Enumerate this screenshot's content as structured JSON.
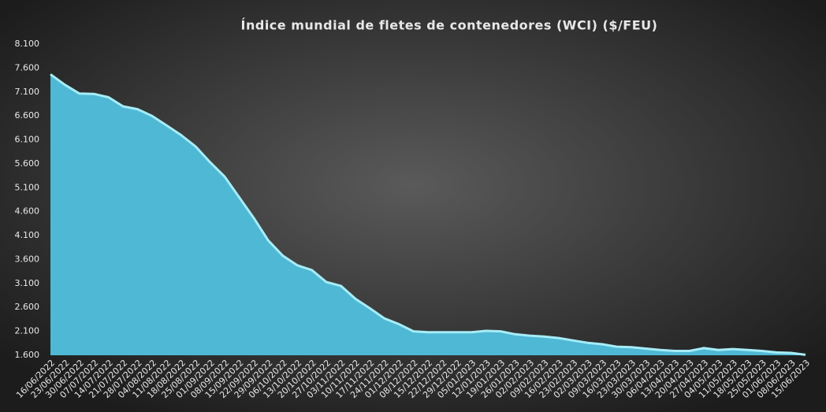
{
  "chart_data": {
    "type": "area",
    "title": "Índice mundial  de fletes de contenedores (WCI) ($/FEU)",
    "categories": [
      "16/06/2022",
      "23/06/2022",
      "30/06/2022",
      "07/07/2022",
      "14/07/2022",
      "21/07/2022",
      "28/07/2022",
      "04/08/2022",
      "11/08/2022",
      "18/08/2022",
      "25/08/2022",
      "01/09/2022",
      "08/09/2022",
      "15/09/2022",
      "22/09/2022",
      "29/09/2022",
      "06/10/2022",
      "13/10/2022",
      "20/10/2022",
      "27/10/2022",
      "03/11/2022",
      "10/11/2022",
      "17/11/2022",
      "24/11/2022",
      "01/12/2022",
      "08/12/2022",
      "15/12/2022",
      "22/12/2022",
      "29/12/2022",
      "05/01/2023",
      "12/01/2023",
      "19/01/2023",
      "26/01/2023",
      "02/02/2023",
      "09/02/2023",
      "16/02/2023",
      "23/02/2023",
      "02/03/2023",
      "09/03/2023",
      "16/03/2023",
      "23/03/2023",
      "30/03/2023",
      "06/04/2023",
      "13/04/2023",
      "20/04/2023",
      "27/04/2023",
      "04/05/2023",
      "11/05/2023",
      "18/05/2023",
      "25/05/2023",
      "01/06/2023",
      "08/06/2023",
      "15/06/2023"
    ],
    "values": [
      7470,
      7250,
      7066,
      7060,
      6990,
      6800,
      6740,
      6600,
      6400,
      6200,
      5960,
      5630,
      5330,
      4900,
      4470,
      4000,
      3680,
      3480,
      3380,
      3130,
      3050,
      2780,
      2580,
      2370,
      2250,
      2100,
      2080,
      2080,
      2080,
      2080,
      2110,
      2100,
      2040,
      2010,
      1990,
      1960,
      1910,
      1860,
      1830,
      1780,
      1770,
      1740,
      1710,
      1690,
      1690,
      1750,
      1710,
      1730,
      1710,
      1690,
      1660,
      1650,
      1610
    ],
    "color": "#4fb8d4",
    "line_color": "#a6ecf7",
    "ylim": [
      1600,
      8100
    ],
    "yticks": [
      {
        "value": 1600,
        "label": "1.600"
      },
      {
        "value": 2100,
        "label": "2.100"
      },
      {
        "value": 2600,
        "label": "2.600"
      },
      {
        "value": 3100,
        "label": "3.100"
      },
      {
        "value": 3600,
        "label": "3.600"
      },
      {
        "value": 4100,
        "label": "4.100"
      },
      {
        "value": 4600,
        "label": "4.600"
      },
      {
        "value": 5100,
        "label": "5.100"
      },
      {
        "value": 5600,
        "label": "5.600"
      },
      {
        "value": 6100,
        "label": "6.100"
      },
      {
        "value": 6600,
        "label": "6.600"
      },
      {
        "value": 7100,
        "label": "7.100"
      },
      {
        "value": 7600,
        "label": "7.600"
      },
      {
        "value": 8100,
        "label": "8.100"
      }
    ],
    "grid": false
  }
}
